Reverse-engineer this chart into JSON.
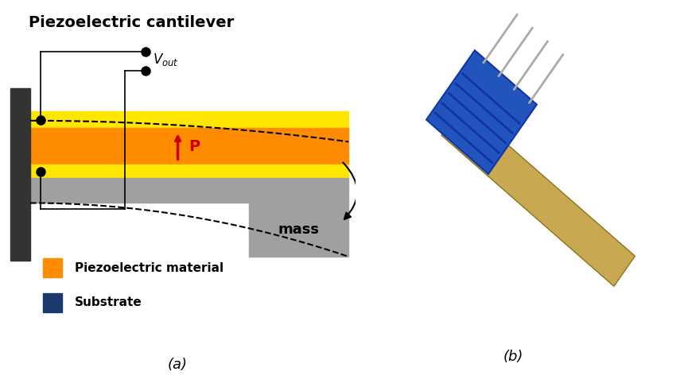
{
  "title": "Piezoelectric cantilever",
  "title_fontsize": 14,
  "title_fontweight": "bold",
  "bg_color": "#ffffff",
  "wall_color": "#333333",
  "yellow_color": "#FFE600",
  "orange_color": "#FF8C00",
  "gray_color": "#A0A0A0",
  "mass_color": "#A0A0A0",
  "legend_orange_label": "Piezoelectric material",
  "legend_blue_label": "Substrate",
  "legend_blue_color": "#1a3a6b",
  "caption_a": "(a)",
  "caption_b": "(b)",
  "arrow_color": "#CC0000"
}
